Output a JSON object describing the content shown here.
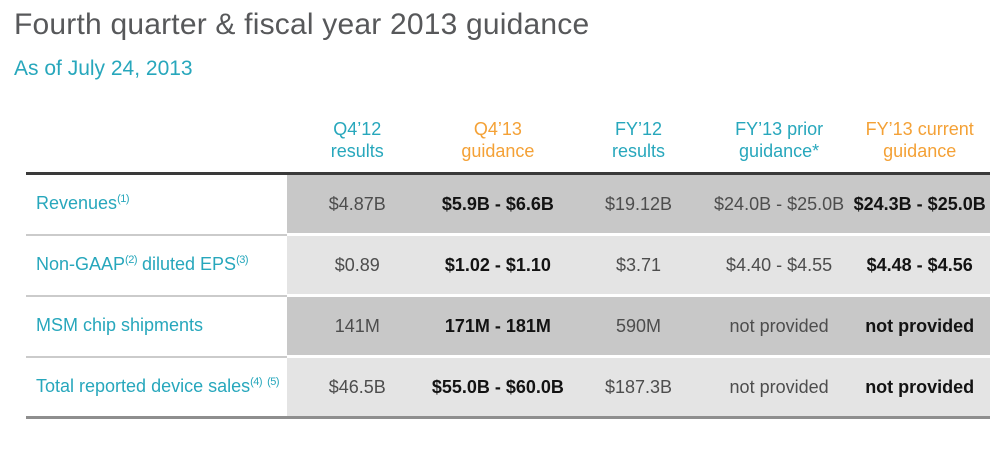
{
  "title": "Fourth quarter & fiscal year 2013 guidance",
  "subtitle": "As of July 24, 2013",
  "colors": {
    "teal": "#27a7bc",
    "orange": "#f4a136",
    "title_gray": "#57585a",
    "header_rule": "#3a3a3a",
    "bottom_rule": "#8e8e8e",
    "label_separator": "#cbcbcb",
    "row_dark_bg": "#c8c8c8",
    "row_light_bg": "#e4e4e4",
    "value_regular": "#4d4d4d",
    "value_bold": "#131313"
  },
  "table": {
    "columns": [
      {
        "id": "q4-12-results",
        "lines": [
          "Q4’12",
          "results"
        ],
        "style": "teal",
        "values_bold": false
      },
      {
        "id": "q4-13-guidance",
        "lines": [
          "Q4’13",
          "guidance"
        ],
        "style": "orange",
        "values_bold": true
      },
      {
        "id": "fy-12-results",
        "lines": [
          "FY’12",
          "results"
        ],
        "style": "teal",
        "values_bold": false
      },
      {
        "id": "fy-13-prior-guidance",
        "lines": [
          "FY’13 prior",
          "guidance*"
        ],
        "style": "teal",
        "values_bold": false
      },
      {
        "id": "fy-13-current-guidance",
        "lines": [
          "FY’13 current",
          "guidance"
        ],
        "style": "orange",
        "values_bold": true
      }
    ],
    "rows": [
      {
        "id": "revenues",
        "label_segments": [
          {
            "text": "Revenues"
          },
          {
            "sup": "(1)"
          }
        ],
        "values": [
          "$4.87B",
          "$5.9B - $6.6B",
          "$19.12B",
          "$24.0B - $25.0B",
          "$24.3B - $25.0B"
        ]
      },
      {
        "id": "non-gaap-diluted-eps",
        "label_segments": [
          {
            "text": "Non-GAAP"
          },
          {
            "sup": "(2)"
          },
          {
            "text": " diluted EPS"
          },
          {
            "sup": "(3)"
          }
        ],
        "values": [
          "$0.89",
          "$1.02 - $1.10",
          "$3.71",
          "$4.40 - $4.55",
          "$4.48 - $4.56"
        ]
      },
      {
        "id": "msm-chip-shipments",
        "label_segments": [
          {
            "text": "MSM chip shipments"
          }
        ],
        "values": [
          "141M",
          "171M - 181M",
          "590M",
          "not provided",
          "not provided"
        ]
      },
      {
        "id": "total-reported-device-sales",
        "label_segments": [
          {
            "text": "Total reported device sales"
          },
          {
            "sup": "(4)"
          },
          {
            "text": " "
          },
          {
            "sup": "(5)"
          }
        ],
        "values": [
          "$46.5B",
          "$55.0B - $60.0B",
          "$187.3B",
          "not provided",
          "not provided"
        ]
      }
    ]
  }
}
